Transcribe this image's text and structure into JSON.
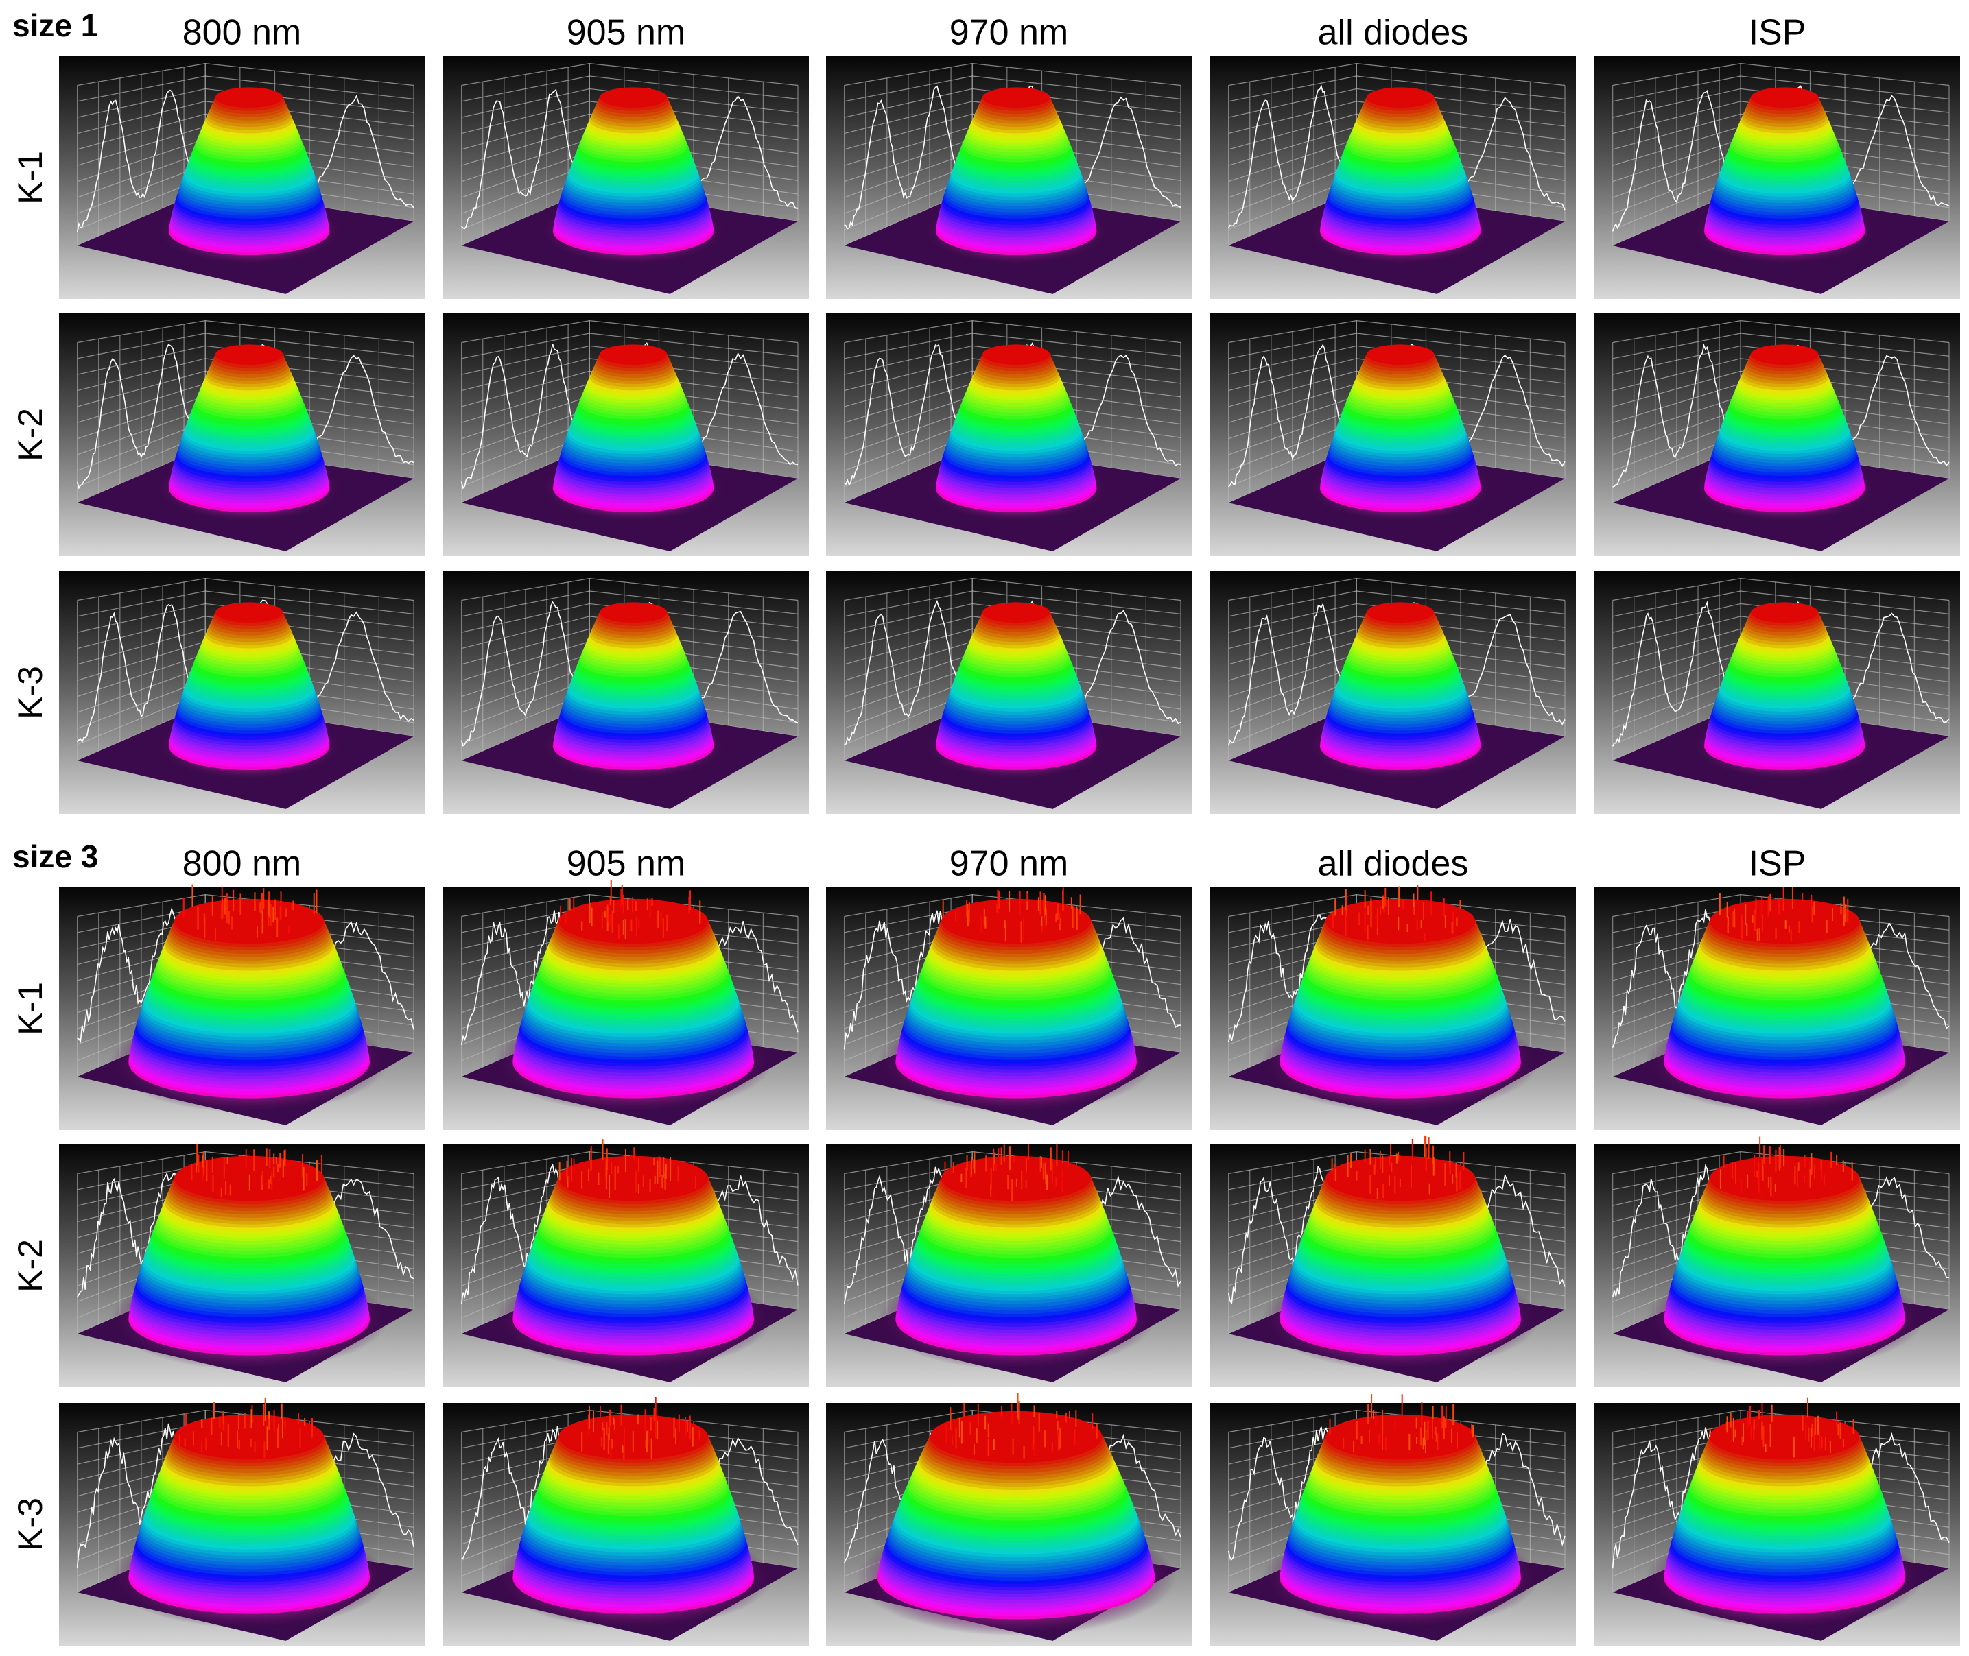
{
  "sections": [
    {
      "title": "size 1",
      "columns": [
        "800 nm",
        "905 nm",
        "970 nm",
        "all diodes",
        "ISP"
      ],
      "rows": [
        "K-1",
        "K-2",
        "K-3"
      ]
    },
    {
      "title": "size 3",
      "columns": [
        "800 nm",
        "905 nm",
        "970 nm",
        "all diodes",
        "ISP"
      ],
      "rows": [
        "K-1",
        "K-2",
        "K-3"
      ]
    }
  ]
}
